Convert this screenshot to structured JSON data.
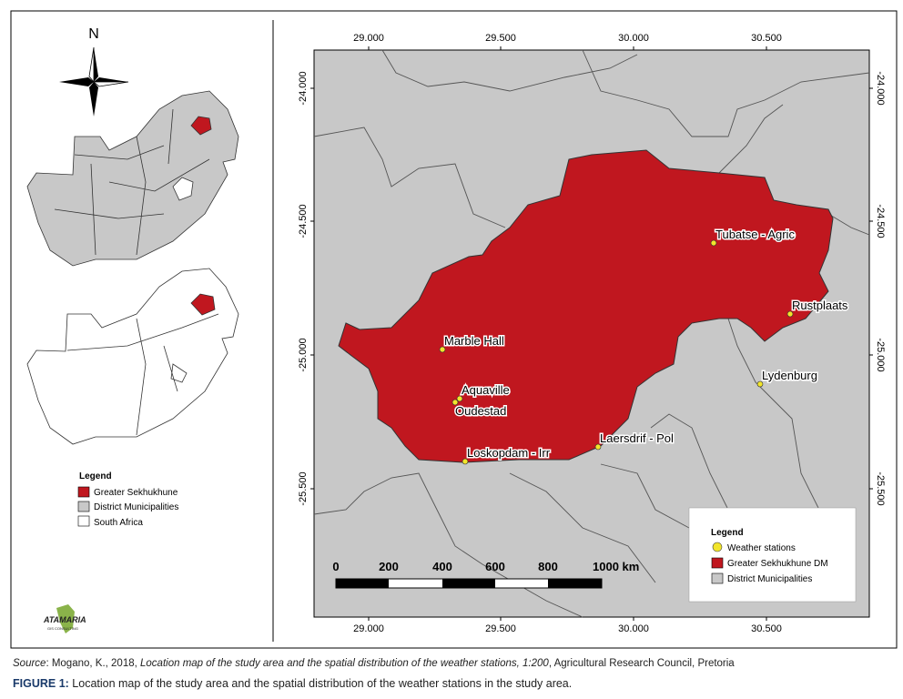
{
  "left_panel": {
    "north": "N",
    "legend": {
      "title": "Legend",
      "items": [
        "Greater Sekhukhune",
        "District Municipalities",
        "South Africa"
      ]
    },
    "logo": {
      "name": "ATAMARIA",
      "sub": "GIS CONSULTING"
    }
  },
  "map": {
    "x_ticks": [
      "29.000",
      "29.500",
      "30.000",
      "30.500"
    ],
    "y_ticks": [
      "-24.000",
      "-24.500",
      "-25.000",
      "-25.500"
    ],
    "stations": [
      "Tubatse - Agric",
      "Rustplaats",
      "Lydenburg",
      "Marble Hall",
      "Aquaville",
      "Oudestad",
      "Loskopdam - Irr",
      "Laersdrif - Pol"
    ],
    "scale_bar": [
      "0",
      "200",
      "400",
      "600",
      "800",
      "1000 km"
    ],
    "legend": {
      "title": "Legend",
      "items": [
        "Weather stations",
        "Greater Sekhukhune DM",
        "District Municipalities"
      ]
    }
  },
  "source": {
    "label": "Source",
    "parts": [
      ": Mogano, K., 2018, ",
      "Location map of the study area and the spatial distribution of the weather stations, 1:200",
      ", Agricultural Research Council, Pretoria"
    ]
  },
  "caption": {
    "label": "FIGURE 1:",
    "text": " Location map of the study area and the spatial distribution of the weather stations in the study area."
  }
}
